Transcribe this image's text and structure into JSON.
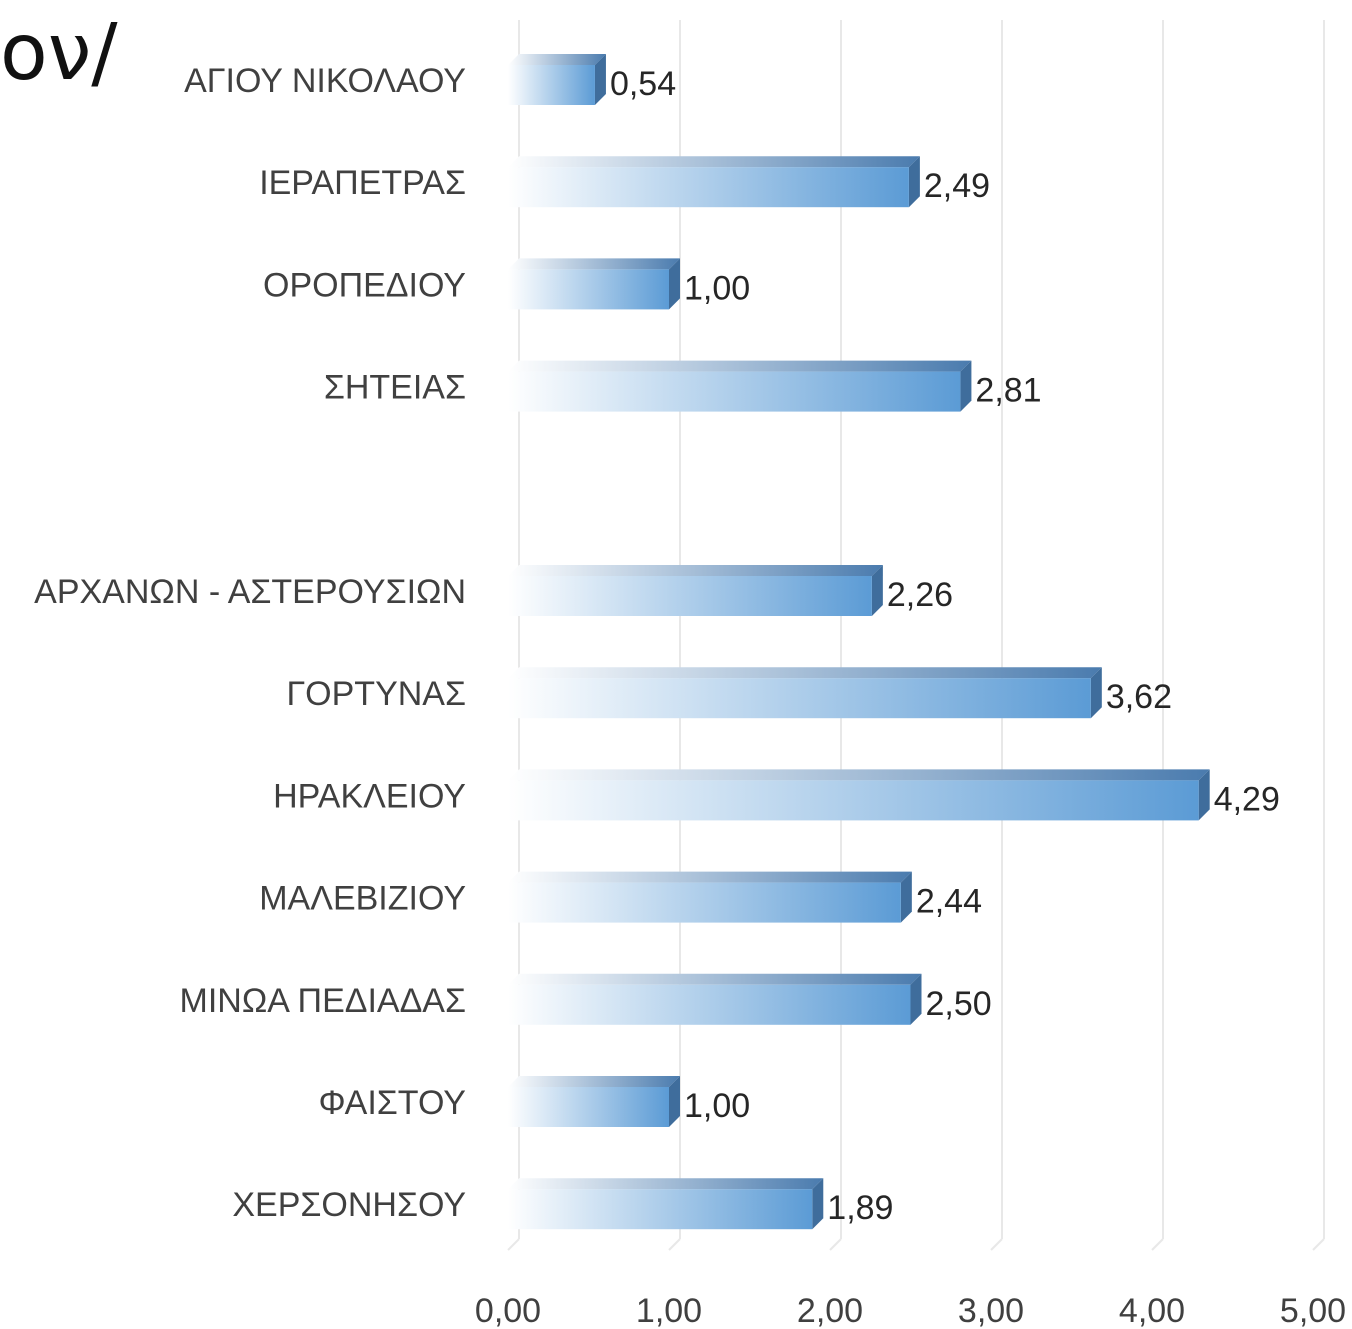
{
  "slide": {
    "title_fragment": "ον/"
  },
  "chart_data": {
    "type": "bar",
    "orientation": "horizontal",
    "categories": [
      "ΑΓΙΟΥ ΝΙΚΟΛΑΟΥ",
      "ΙΕΡΑΠΕΤΡΑΣ",
      "ΟΡΟΠΕΔΙΟΥ",
      "ΣΗΤΕΙΑΣ",
      "",
      "ΑΡΧΑΝΩΝ - ΑΣΤΕΡΟΥΣΙΩΝ",
      "ΓΟΡΤΥΝΑΣ",
      "ΗΡΑΚΛΕΙΟΥ",
      "ΜΑΛΕΒΙΖΙΟΥ",
      "ΜΙΝΩΑ ΠΕΔΙΑΔΑΣ",
      "ΦΑΙΣΤΟΥ",
      "ΧΕΡΣΟΝΗΣΟΥ"
    ],
    "values": [
      0.54,
      2.49,
      1.0,
      2.81,
      null,
      2.26,
      3.62,
      4.29,
      2.44,
      2.5,
      1.0,
      1.89
    ],
    "value_labels": [
      "0,54",
      "2,49",
      "1,00",
      "2,81",
      "",
      "2,26",
      "3,62",
      "4,29",
      "2,44",
      "2,50",
      "1,00",
      "1,89"
    ],
    "xlim": [
      0,
      5
    ],
    "xticks": [
      0,
      1,
      2,
      3,
      4,
      5
    ],
    "xtick_labels": [
      "0,00",
      "1,00",
      "2,00",
      "3,00",
      "4,00",
      "5,00"
    ],
    "grid": true,
    "legend": false,
    "bar_color": "#5B9BD5",
    "bar_top_color": "#4A7BAE",
    "bar_side_color": "#3F6D9C",
    "grid_color": "#E8E8E8",
    "title": "",
    "xlabel": "",
    "ylabel": ""
  }
}
